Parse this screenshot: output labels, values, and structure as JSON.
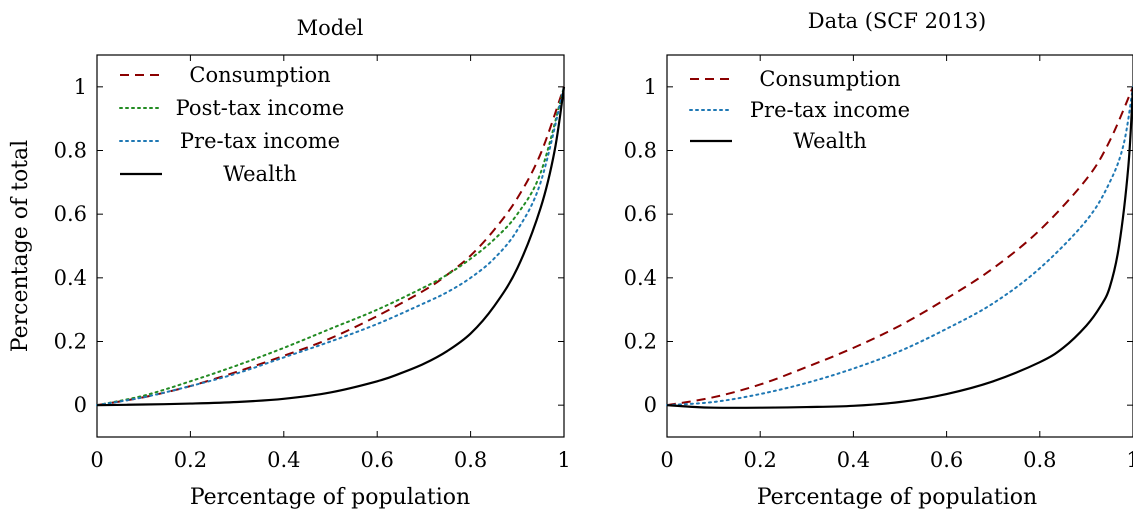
{
  "chart_data": [
    {
      "type": "line",
      "title": "Model",
      "xlabel": "Percentage of population",
      "ylabel": "Percentage of total",
      "xlim": [
        0,
        1
      ],
      "ylim": [
        -0.1,
        1.1
      ],
      "xticks": [
        "0",
        "0.2",
        "0.4",
        "0.6",
        "0.8",
        "1"
      ],
      "yticks": [
        "0",
        "0.2",
        "0.4",
        "0.6",
        "0.8",
        "1"
      ],
      "grid": false,
      "legend_position": "top-left",
      "series": [
        {
          "name": "Consumption",
          "color": "#8b0000",
          "style": "dashed",
          "x": [
            0,
            0.1,
            0.2,
            0.3,
            0.4,
            0.5,
            0.6,
            0.7,
            0.75,
            0.8,
            0.85,
            0.9,
            0.95,
            1.0
          ],
          "y": [
            0,
            0.025,
            0.06,
            0.105,
            0.155,
            0.21,
            0.28,
            0.36,
            0.41,
            0.47,
            0.55,
            0.65,
            0.79,
            1.0
          ]
        },
        {
          "name": "Post-tax income",
          "color": "#228b22",
          "style": "dotted",
          "x": [
            0,
            0.1,
            0.2,
            0.3,
            0.4,
            0.5,
            0.6,
            0.7,
            0.75,
            0.8,
            0.85,
            0.9,
            0.95,
            1.0
          ],
          "y": [
            0,
            0.03,
            0.075,
            0.125,
            0.18,
            0.24,
            0.3,
            0.37,
            0.41,
            0.46,
            0.52,
            0.6,
            0.73,
            1.0
          ]
        },
        {
          "name": "Pre-tax income",
          "color": "#1f78b4",
          "style": "dotted",
          "x": [
            0,
            0.1,
            0.2,
            0.3,
            0.4,
            0.5,
            0.6,
            0.7,
            0.75,
            0.8,
            0.85,
            0.9,
            0.95,
            1.0
          ],
          "y": [
            0,
            0.025,
            0.06,
            0.1,
            0.15,
            0.2,
            0.255,
            0.32,
            0.355,
            0.4,
            0.46,
            0.55,
            0.7,
            1.0
          ]
        },
        {
          "name": "Wealth",
          "color": "#000000",
          "style": "solid",
          "x": [
            0,
            0.1,
            0.2,
            0.3,
            0.4,
            0.5,
            0.6,
            0.65,
            0.7,
            0.75,
            0.8,
            0.85,
            0.9,
            0.95,
            0.98,
            1.0
          ],
          "y": [
            0,
            0.002,
            0.005,
            0.01,
            0.02,
            0.04,
            0.075,
            0.1,
            0.13,
            0.17,
            0.225,
            0.31,
            0.43,
            0.62,
            0.8,
            1.0
          ]
        }
      ]
    },
    {
      "type": "line",
      "title": "Data (SCF 2013)",
      "xlabel": "Percentage of population",
      "ylabel": "",
      "xlim": [
        0,
        1
      ],
      "ylim": [
        -0.1,
        1.1
      ],
      "xticks": [
        "0",
        "0.2",
        "0.4",
        "0.6",
        "0.8",
        "1"
      ],
      "yticks": [
        "0",
        "0.2",
        "0.4",
        "0.6",
        "0.8",
        "1"
      ],
      "grid": false,
      "legend_position": "top-left",
      "series": [
        {
          "name": "Consumption",
          "color": "#8b0000",
          "style": "dashed",
          "x": [
            0,
            0.1,
            0.2,
            0.3,
            0.4,
            0.5,
            0.6,
            0.7,
            0.8,
            0.9,
            0.95,
            1.0
          ],
          "y": [
            0,
            0.025,
            0.065,
            0.12,
            0.18,
            0.25,
            0.335,
            0.43,
            0.55,
            0.71,
            0.83,
            1.0
          ]
        },
        {
          "name": "Pre-tax income",
          "color": "#1f78b4",
          "style": "dotted",
          "x": [
            0,
            0.1,
            0.2,
            0.3,
            0.4,
            0.5,
            0.6,
            0.7,
            0.8,
            0.9,
            0.95,
            0.98,
            1.0
          ],
          "y": [
            0,
            0.01,
            0.035,
            0.07,
            0.115,
            0.17,
            0.24,
            0.32,
            0.43,
            0.58,
            0.7,
            0.82,
            1.0
          ]
        },
        {
          "name": "Wealth",
          "color": "#000000",
          "style": "solid",
          "x": [
            0,
            0.05,
            0.1,
            0.2,
            0.3,
            0.4,
            0.5,
            0.6,
            0.7,
            0.8,
            0.85,
            0.9,
            0.93,
            0.95,
            0.97,
            0.99,
            1.0
          ],
          "y": [
            0,
            -0.005,
            -0.008,
            -0.008,
            -0.006,
            -0.002,
            0.01,
            0.035,
            0.075,
            0.135,
            0.18,
            0.25,
            0.31,
            0.37,
            0.5,
            0.75,
            1.0
          ]
        }
      ]
    }
  ]
}
